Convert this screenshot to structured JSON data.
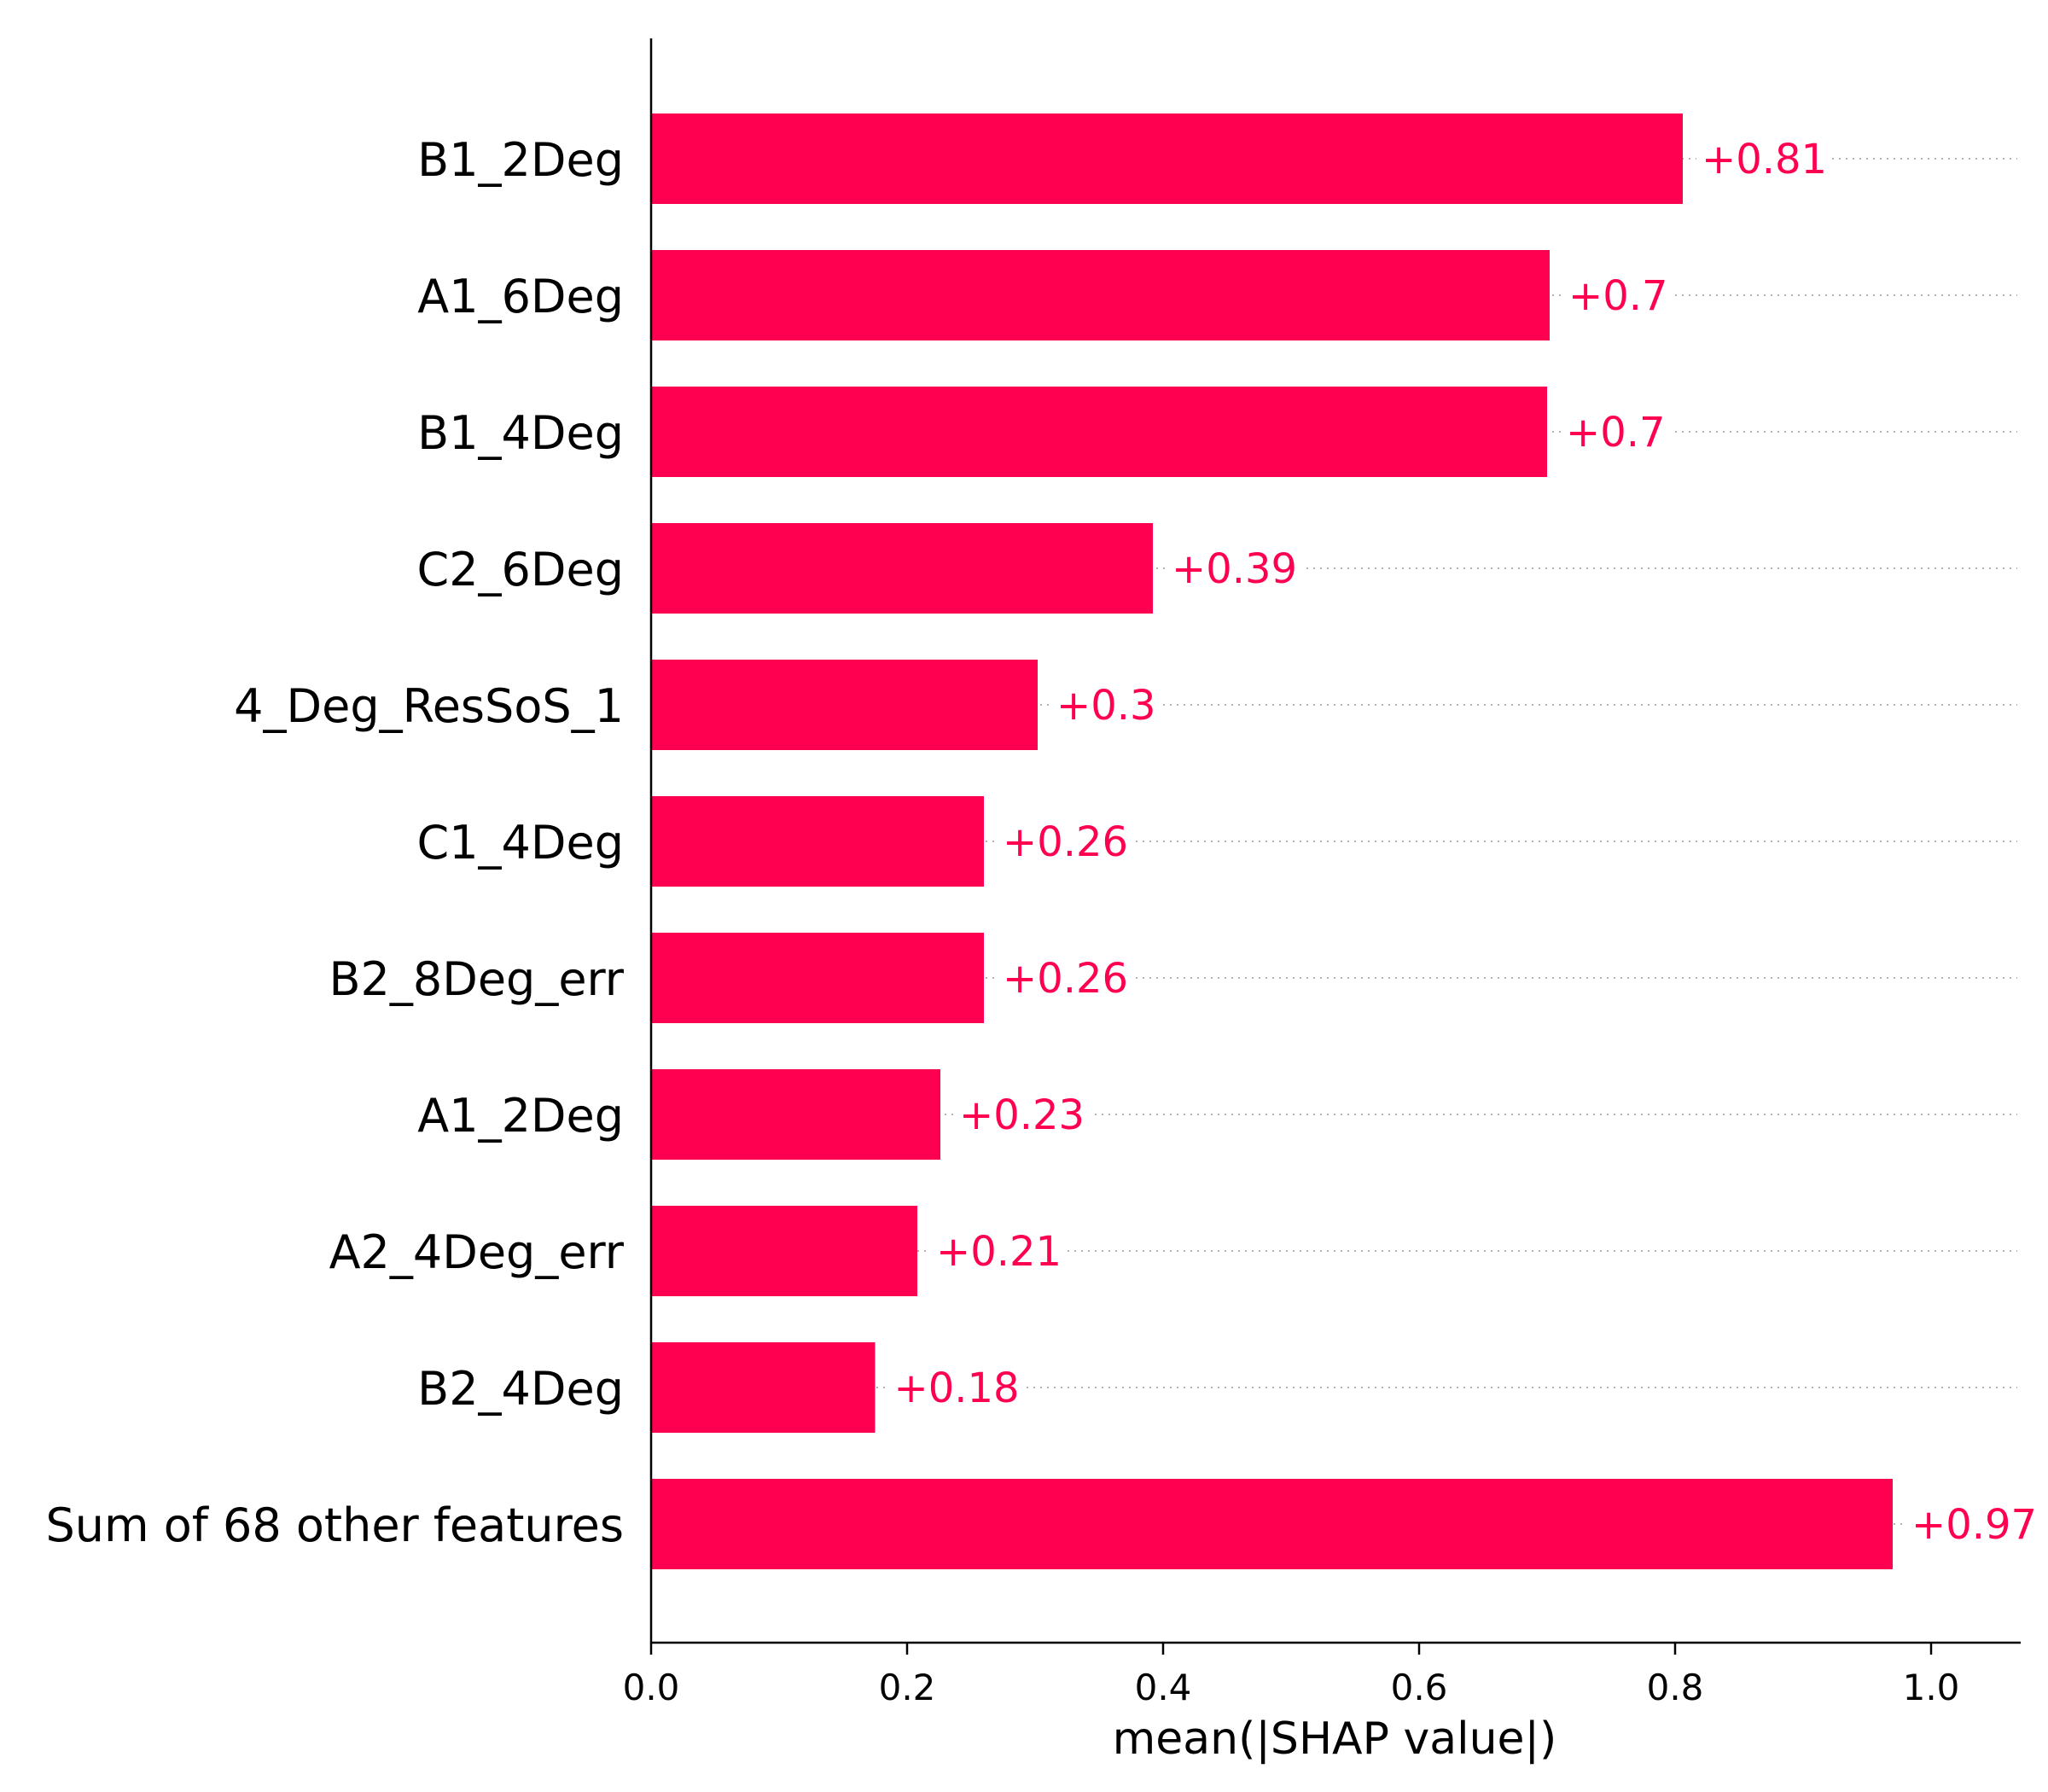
{
  "chart_data": {
    "type": "bar",
    "orientation": "horizontal",
    "categories": [
      "B1_2Deg",
      "A1_6Deg",
      "B1_4Deg",
      "C2_6Deg",
      "4_Deg_ResSoS_1",
      "C1_4Deg",
      "B2_8Deg_err",
      "A1_2Deg",
      "A2_4Deg_err",
      "B2_4Deg",
      "Sum of 68 other features"
    ],
    "values": [
      0.806,
      0.702,
      0.7,
      0.392,
      0.302,
      0.26,
      0.26,
      0.226,
      0.208,
      0.175,
      0.97
    ],
    "value_labels": [
      "+0.81",
      "+0.7",
      "+0.7",
      "+0.39",
      "+0.3",
      "+0.26",
      "+0.26",
      "+0.23",
      "+0.21",
      "+0.18",
      "+0.97"
    ],
    "xlabel": "mean(|SHAP value|)",
    "ylabel": "",
    "title": "",
    "xlim": [
      0,
      1.07
    ],
    "x_ticks": [
      0.0,
      0.2,
      0.4,
      0.6,
      0.8,
      1.0
    ],
    "x_tick_labels": [
      "0.0",
      "0.2",
      "0.4",
      "0.6",
      "0.8",
      "1.0"
    ],
    "bar_color": "#ff0051",
    "value_label_color": "#ff0051",
    "gridlines": "dotted per bar",
    "legend": "none"
  }
}
